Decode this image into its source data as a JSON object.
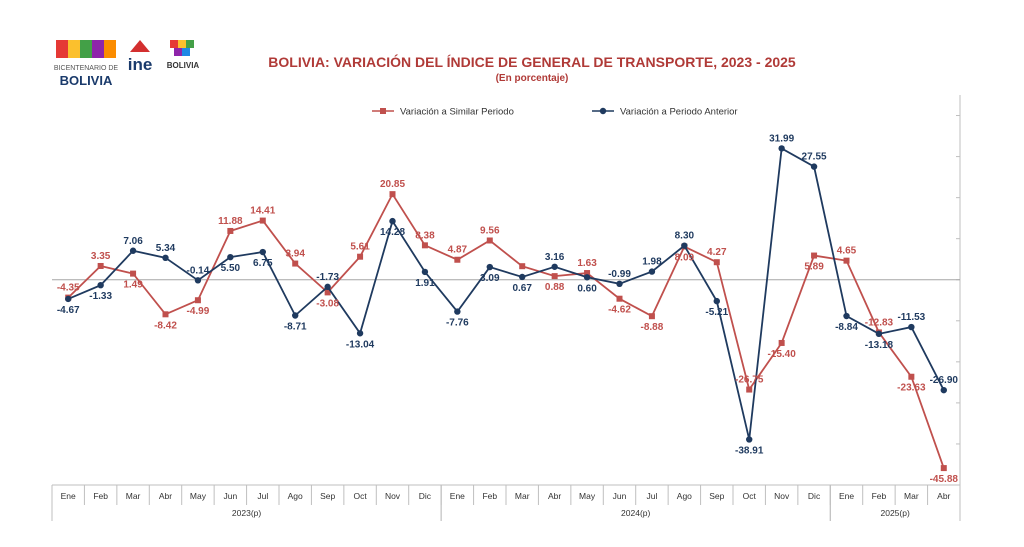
{
  "header": {
    "title": "BOLIVIA: VARIACIÓN DEL ÍNDICE DE GENERAL DE TRANSPORTE,  2023 - 2025",
    "subtitle": "(En porcentaje)"
  },
  "logos": {
    "bicentenario_line1": "BICENTENARIO DE",
    "bicentenario_line2": "BOLIVIA",
    "ine": "ine",
    "estado_line": "BOLIVIA"
  },
  "colors": {
    "similar": "#c0504d",
    "anterior": "#1f3a5f",
    "title": "#b03a37",
    "axis": "#7f7f7f"
  },
  "chart_data": {
    "type": "line",
    "title": "BOLIVIA: VARIACIÓN DEL ÍNDICE DE GENERAL DE TRANSPORTE,  2023 - 2025",
    "subtitle": "(En porcentaje)",
    "categories": [
      "Ene",
      "Feb",
      "Mar",
      "Abr",
      "May",
      "Jun",
      "Jul",
      "Ago",
      "Sep",
      "Oct",
      "Nov",
      "Dic",
      "Ene",
      "Feb",
      "Mar",
      "Abr",
      "May",
      "Jun",
      "Jul",
      "Ago",
      "Sep",
      "Oct",
      "Nov",
      "Dic",
      "Ene",
      "Feb",
      "Mar",
      "Abr"
    ],
    "year_groups": [
      {
        "label": "2023(p)",
        "start": 0,
        "end": 11
      },
      {
        "label": "2024(p)",
        "start": 12,
        "end": 23
      },
      {
        "label": "2025(p)",
        "start": 24,
        "end": 27
      }
    ],
    "ylim": [
      -50,
      45
    ],
    "legend_position": "top",
    "series": [
      {
        "name": "Variación a Similar Periodo",
        "color": "#c0504d",
        "marker": "square",
        "values": [
          -4.35,
          3.35,
          1.49,
          -8.42,
          -4.99,
          11.88,
          14.41,
          3.94,
          -3.08,
          5.61,
          20.85,
          8.38,
          4.87,
          9.56,
          3.3,
          0.88,
          1.63,
          -4.62,
          -8.88,
          8.09,
          4.27,
          -26.75,
          -15.4,
          5.89,
          4.65,
          -12.83,
          -23.63,
          -45.88
        ],
        "labels": [
          "-4.35",
          "3.35",
          "1.49",
          "-8.42",
          "-4.99",
          "11.88",
          "14.41",
          "3.94",
          "-3.08",
          "5.61",
          "20.85",
          "8.38",
          "4.87",
          "9.56",
          "",
          "0.88",
          "1.63",
          "-4.62",
          "-8.88",
          "8.09",
          "4.27",
          "-26.75",
          "-15.40",
          "5.89",
          "4.65",
          "-12.83",
          "-23.63",
          "-45.88"
        ]
      },
      {
        "name": "Variación a Periodo Anterior",
        "color": "#1f3a5f",
        "marker": "circle",
        "values": [
          -4.67,
          -1.33,
          7.06,
          5.34,
          -0.14,
          5.5,
          6.75,
          -8.71,
          -1.73,
          -13.04,
          14.28,
          1.91,
          -7.76,
          3.09,
          0.67,
          3.16,
          0.6,
          -0.99,
          1.98,
          8.3,
          -5.21,
          -38.91,
          31.99,
          27.55,
          -8.84,
          -13.18,
          -11.53,
          -26.9
        ],
        "labels": [
          "-4.67",
          "-1.33",
          "7.06",
          "5.34",
          "-0.14",
          "5.50",
          "6.75",
          "-8.71",
          "-1.73",
          "-13.04",
          "14.28",
          "1.91",
          "-7.76",
          "3.09",
          "0.67",
          "3.16",
          "0.60",
          "-0.99",
          "1.98",
          "8.30",
          "-5.21",
          "-38.91",
          "31.99",
          "27.55",
          "-8.84",
          "-13.18",
          "-11.53",
          "-26.90"
        ]
      }
    ]
  }
}
